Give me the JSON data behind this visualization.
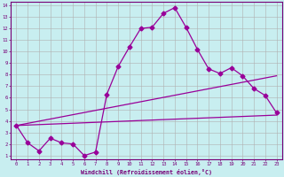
{
  "xlabel": "Windchill (Refroidissement éolien,°C)",
  "background_color": "#c8eef0",
  "line_color": "#990099",
  "grid_color": "#b0b0b0",
  "xmin": 0,
  "xmax": 23,
  "ymin": 1,
  "ymax": 14,
  "line1_x": [
    0,
    1,
    2,
    3,
    4,
    5,
    6,
    7,
    8,
    9,
    10,
    11,
    12,
    13,
    14,
    15,
    16,
    17,
    18,
    19,
    20,
    21,
    22,
    23
  ],
  "line1_y": [
    3.6,
    2.1,
    1.4,
    2.5,
    2.1,
    2.0,
    1.0,
    1.3,
    6.3,
    8.7,
    10.4,
    12.0,
    12.1,
    13.3,
    13.8,
    12.1,
    10.2,
    8.5,
    8.1,
    8.6,
    7.9,
    6.8,
    6.2,
    4.7
  ],
  "line2_x": [
    0,
    23
  ],
  "line2_y": [
    3.6,
    4.5
  ],
  "line3_x": [
    0,
    23
  ],
  "line3_y": [
    3.6,
    7.9
  ],
  "marker_size": 2.5,
  "linewidth": 0.9
}
